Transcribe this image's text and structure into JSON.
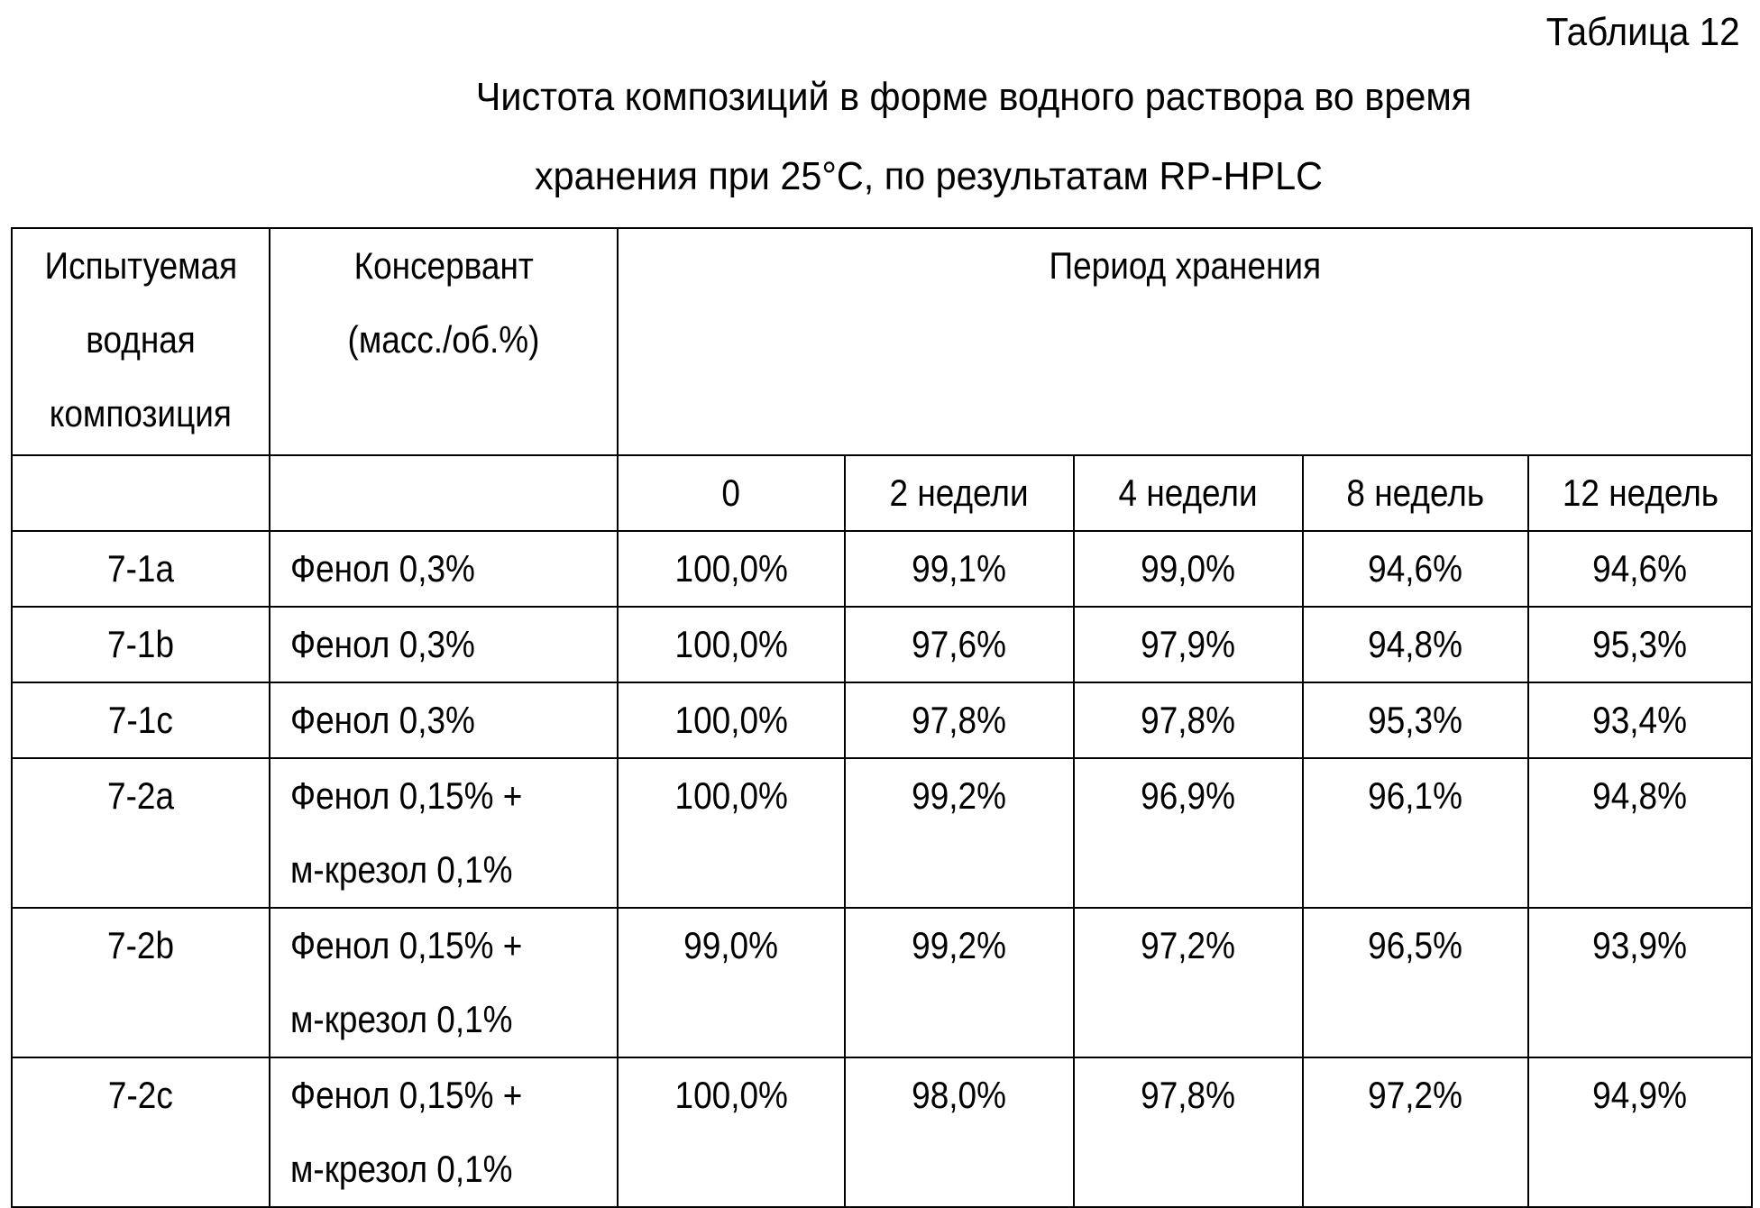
{
  "table_label": "Таблица 12",
  "caption_line1": "Чистота композиций в форме водного раствора во время",
  "caption_line2": "хранения при 25°С, по результатам RP-HPLC",
  "headers": {
    "composition": [
      "Испытуемая",
      "водная",
      "композиция"
    ],
    "preservative": [
      "Консервант",
      "(масс./об.%)"
    ],
    "period": "Период хранения",
    "periods": [
      "0",
      "2 недели",
      "4 недели",
      "8 недель",
      "12 недель"
    ]
  },
  "rows": [
    {
      "id": "7-1a",
      "preservative": [
        "Фенол 0,3%"
      ],
      "values": [
        "100,0%",
        "99,1%",
        "99,0%",
        "94,6%",
        "94,6%"
      ]
    },
    {
      "id": "7-1b",
      "preservative": [
        "Фенол 0,3%"
      ],
      "values": [
        "100,0%",
        "97,6%",
        "97,9%",
        "94,8%",
        "95,3%"
      ]
    },
    {
      "id": "7-1c",
      "preservative": [
        "Фенол 0,3%"
      ],
      "values": [
        "100,0%",
        "97,8%",
        "97,8%",
        "95,3%",
        "93,4%"
      ]
    },
    {
      "id": "7-2a",
      "preservative": [
        "Фенол 0,15% +",
        "м-крезол 0,1%"
      ],
      "values": [
        "100,0%",
        "99,2%",
        "96,9%",
        "96,1%",
        "94,8%"
      ]
    },
    {
      "id": "7-2b",
      "preservative": [
        "Фенол 0,15% +",
        "м-крезол 0,1%"
      ],
      "values": [
        "99,0%",
        "99,2%",
        "97,2%",
        "96,5%",
        "93,9%"
      ]
    },
    {
      "id": "7-2c",
      "preservative": [
        "Фенол 0,15% +",
        "м-крезол 0,1%"
      ],
      "values": [
        "100,0%",
        "98,0%",
        "97,8%",
        "97,2%",
        "94,9%"
      ]
    }
  ]
}
